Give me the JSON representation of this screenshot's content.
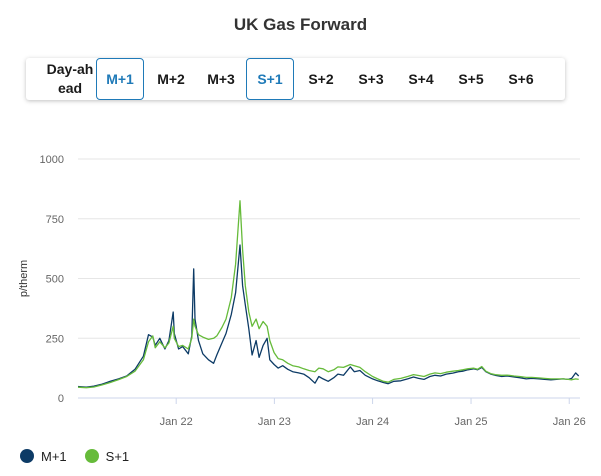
{
  "title": "UK Gas Forward",
  "tabs": [
    {
      "label": "Day-ahead",
      "active": false
    },
    {
      "label": "M+1",
      "active": true
    },
    {
      "label": "M+2",
      "active": false
    },
    {
      "label": "M+3",
      "active": false
    },
    {
      "label": "S+1",
      "active": true
    },
    {
      "label": "S+2",
      "active": false
    },
    {
      "label": "S+3",
      "active": false
    },
    {
      "label": "S+4",
      "active": false
    },
    {
      "label": "S+5",
      "active": false
    },
    {
      "label": "S+6",
      "active": false
    }
  ],
  "colors": {
    "accent": "#1f7ab8",
    "m1": "#0d3b66",
    "s1": "#66bb3a"
  },
  "legend": [
    {
      "label": "M+1",
      "color": "#0d3b66"
    },
    {
      "label": "S+1",
      "color": "#66bb3a"
    }
  ],
  "chart_data": {
    "type": "line",
    "title": "UK Gas Forward",
    "ylabel": "p/therm",
    "xlabel": "",
    "ylim": [
      0,
      1000
    ],
    "yticks": [
      0,
      250,
      500,
      750,
      1000
    ],
    "xticks": [
      "Jan 22",
      "Jan 23",
      "Jan 24",
      "Jan 25",
      "Jan 26"
    ],
    "x_range": [
      "2021-01-01",
      "2026-02-10"
    ],
    "grid": true,
    "legend_position": "bottom-left",
    "series": [
      {
        "name": "M+1",
        "color": "#0d3b66",
        "points": [
          [
            "2021-01-01",
            48
          ],
          [
            "2021-02-01",
            45
          ],
          [
            "2021-03-01",
            50
          ],
          [
            "2021-04-01",
            58
          ],
          [
            "2021-05-01",
            70
          ],
          [
            "2021-06-01",
            80
          ],
          [
            "2021-07-01",
            92
          ],
          [
            "2021-08-01",
            120
          ],
          [
            "2021-09-01",
            175
          ],
          [
            "2021-09-20",
            265
          ],
          [
            "2021-10-06",
            255
          ],
          [
            "2021-10-15",
            220
          ],
          [
            "2021-11-01",
            250
          ],
          [
            "2021-11-20",
            205
          ],
          [
            "2021-12-05",
            240
          ],
          [
            "2021-12-21",
            360
          ],
          [
            "2021-12-25",
            270
          ],
          [
            "2022-01-10",
            205
          ],
          [
            "2022-01-25",
            215
          ],
          [
            "2022-02-15",
            185
          ],
          [
            "2022-02-28",
            260
          ],
          [
            "2022-03-07",
            540
          ],
          [
            "2022-03-12",
            330
          ],
          [
            "2022-03-25",
            240
          ],
          [
            "2022-04-10",
            185
          ],
          [
            "2022-05-01",
            160
          ],
          [
            "2022-05-20",
            145
          ],
          [
            "2022-06-01",
            180
          ],
          [
            "2022-06-20",
            230
          ],
          [
            "2022-07-05",
            270
          ],
          [
            "2022-07-25",
            350
          ],
          [
            "2022-08-10",
            440
          ],
          [
            "2022-08-26",
            640
          ],
          [
            "2022-09-05",
            470
          ],
          [
            "2022-09-15",
            390
          ],
          [
            "2022-09-28",
            290
          ],
          [
            "2022-10-10",
            180
          ],
          [
            "2022-10-25",
            240
          ],
          [
            "2022-11-05",
            170
          ],
          [
            "2022-11-20",
            220
          ],
          [
            "2022-12-05",
            250
          ],
          [
            "2022-12-15",
            160
          ],
          [
            "2022-12-31",
            140
          ],
          [
            "2023-01-15",
            125
          ],
          [
            "2023-02-01",
            135
          ],
          [
            "2023-02-20",
            120
          ],
          [
            "2023-03-10",
            110
          ],
          [
            "2023-04-01",
            105
          ],
          [
            "2023-04-20",
            100
          ],
          [
            "2023-05-10",
            85
          ],
          [
            "2023-06-01",
            62
          ],
          [
            "2023-06-15",
            90
          ],
          [
            "2023-07-01",
            80
          ],
          [
            "2023-07-20",
            70
          ],
          [
            "2023-08-10",
            85
          ],
          [
            "2023-08-25",
            100
          ],
          [
            "2023-09-15",
            95
          ],
          [
            "2023-10-10",
            130
          ],
          [
            "2023-10-25",
            110
          ],
          [
            "2023-11-15",
            115
          ],
          [
            "2023-12-05",
            95
          ],
          [
            "2024-01-01",
            80
          ],
          [
            "2024-01-20",
            72
          ],
          [
            "2024-02-10",
            65
          ],
          [
            "2024-02-28",
            60
          ],
          [
            "2024-03-20",
            70
          ],
          [
            "2024-04-15",
            72
          ],
          [
            "2024-05-10",
            80
          ],
          [
            "2024-06-01",
            88
          ],
          [
            "2024-06-20",
            82
          ],
          [
            "2024-07-10",
            78
          ],
          [
            "2024-08-01",
            90
          ],
          [
            "2024-08-20",
            95
          ],
          [
            "2024-09-10",
            92
          ],
          [
            "2024-10-01",
            100
          ],
          [
            "2024-10-25",
            104
          ],
          [
            "2024-11-15",
            110
          ],
          [
            "2024-12-01",
            112
          ],
          [
            "2024-12-20",
            118
          ],
          [
            "2025-01-10",
            122
          ],
          [
            "2025-01-25",
            118
          ],
          [
            "2025-02-10",
            128
          ],
          [
            "2025-02-25",
            110
          ],
          [
            "2025-03-15",
            100
          ],
          [
            "2025-04-01",
            95
          ],
          [
            "2025-04-25",
            90
          ],
          [
            "2025-05-15",
            92
          ],
          [
            "2025-06-10",
            88
          ],
          [
            "2025-07-01",
            85
          ],
          [
            "2025-07-25",
            80
          ],
          [
            "2025-08-15",
            82
          ],
          [
            "2025-09-10",
            80
          ],
          [
            "2025-10-01",
            78
          ],
          [
            "2025-10-25",
            76
          ],
          [
            "2025-11-15",
            78
          ],
          [
            "2025-12-10",
            80
          ],
          [
            "2025-12-28",
            78
          ],
          [
            "2026-01-10",
            82
          ],
          [
            "2026-01-25",
            105
          ],
          [
            "2026-02-05",
            92
          ]
        ]
      },
      {
        "name": "S+1",
        "color": "#66bb3a",
        "points": [
          [
            "2021-01-01",
            45
          ],
          [
            "2021-02-01",
            43
          ],
          [
            "2021-03-01",
            46
          ],
          [
            "2021-04-01",
            55
          ],
          [
            "2021-05-01",
            65
          ],
          [
            "2021-06-01",
            77
          ],
          [
            "2021-07-01",
            90
          ],
          [
            "2021-08-01",
            112
          ],
          [
            "2021-09-01",
            160
          ],
          [
            "2021-09-20",
            235
          ],
          [
            "2021-10-06",
            260
          ],
          [
            "2021-10-15",
            210
          ],
          [
            "2021-11-01",
            235
          ],
          [
            "2021-11-20",
            210
          ],
          [
            "2021-12-05",
            230
          ],
          [
            "2021-12-21",
            300
          ],
          [
            "2021-12-25",
            250
          ],
          [
            "2022-01-10",
            215
          ],
          [
            "2022-01-25",
            220
          ],
          [
            "2022-02-15",
            205
          ],
          [
            "2022-02-28",
            250
          ],
          [
            "2022-03-07",
            330
          ],
          [
            "2022-03-12",
            300
          ],
          [
            "2022-03-25",
            265
          ],
          [
            "2022-04-10",
            255
          ],
          [
            "2022-05-01",
            245
          ],
          [
            "2022-05-20",
            250
          ],
          [
            "2022-06-01",
            260
          ],
          [
            "2022-06-20",
            295
          ],
          [
            "2022-07-05",
            330
          ],
          [
            "2022-07-25",
            420
          ],
          [
            "2022-08-10",
            560
          ],
          [
            "2022-08-26",
            825
          ],
          [
            "2022-09-05",
            620
          ],
          [
            "2022-09-15",
            470
          ],
          [
            "2022-09-28",
            360
          ],
          [
            "2022-10-10",
            300
          ],
          [
            "2022-10-25",
            330
          ],
          [
            "2022-11-05",
            290
          ],
          [
            "2022-11-20",
            320
          ],
          [
            "2022-12-05",
            300
          ],
          [
            "2022-12-15",
            240
          ],
          [
            "2022-12-31",
            190
          ],
          [
            "2023-01-15",
            165
          ],
          [
            "2023-02-01",
            160
          ],
          [
            "2023-02-20",
            145
          ],
          [
            "2023-03-10",
            135
          ],
          [
            "2023-04-01",
            130
          ],
          [
            "2023-04-20",
            122
          ],
          [
            "2023-05-10",
            115
          ],
          [
            "2023-06-01",
            110
          ],
          [
            "2023-06-15",
            125
          ],
          [
            "2023-07-01",
            122
          ],
          [
            "2023-07-20",
            110
          ],
          [
            "2023-08-10",
            118
          ],
          [
            "2023-08-25",
            130
          ],
          [
            "2023-09-15",
            128
          ],
          [
            "2023-10-10",
            140
          ],
          [
            "2023-10-25",
            135
          ],
          [
            "2023-11-15",
            128
          ],
          [
            "2023-12-05",
            110
          ],
          [
            "2024-01-01",
            90
          ],
          [
            "2024-01-20",
            80
          ],
          [
            "2024-02-10",
            70
          ],
          [
            "2024-02-28",
            66
          ],
          [
            "2024-03-20",
            78
          ],
          [
            "2024-04-15",
            82
          ],
          [
            "2024-05-10",
            90
          ],
          [
            "2024-06-01",
            98
          ],
          [
            "2024-06-20",
            94
          ],
          [
            "2024-07-10",
            90
          ],
          [
            "2024-08-01",
            100
          ],
          [
            "2024-08-20",
            105
          ],
          [
            "2024-09-10",
            102
          ],
          [
            "2024-10-01",
            108
          ],
          [
            "2024-10-25",
            112
          ],
          [
            "2024-11-15",
            115
          ],
          [
            "2024-12-01",
            118
          ],
          [
            "2024-12-20",
            122
          ],
          [
            "2025-01-10",
            125
          ],
          [
            "2025-01-25",
            120
          ],
          [
            "2025-02-10",
            132
          ],
          [
            "2025-02-25",
            112
          ],
          [
            "2025-03-15",
            102
          ],
          [
            "2025-04-01",
            98
          ],
          [
            "2025-04-25",
            95
          ],
          [
            "2025-05-15",
            96
          ],
          [
            "2025-06-10",
            92
          ],
          [
            "2025-07-01",
            90
          ],
          [
            "2025-07-25",
            86
          ],
          [
            "2025-08-15",
            86
          ],
          [
            "2025-09-10",
            84
          ],
          [
            "2025-10-01",
            82
          ],
          [
            "2025-10-25",
            80
          ],
          [
            "2025-11-15",
            80
          ],
          [
            "2025-12-10",
            80
          ],
          [
            "2025-12-28",
            78
          ],
          [
            "2026-01-10",
            76
          ],
          [
            "2026-01-25",
            80
          ],
          [
            "2026-02-05",
            78
          ]
        ]
      }
    ]
  }
}
